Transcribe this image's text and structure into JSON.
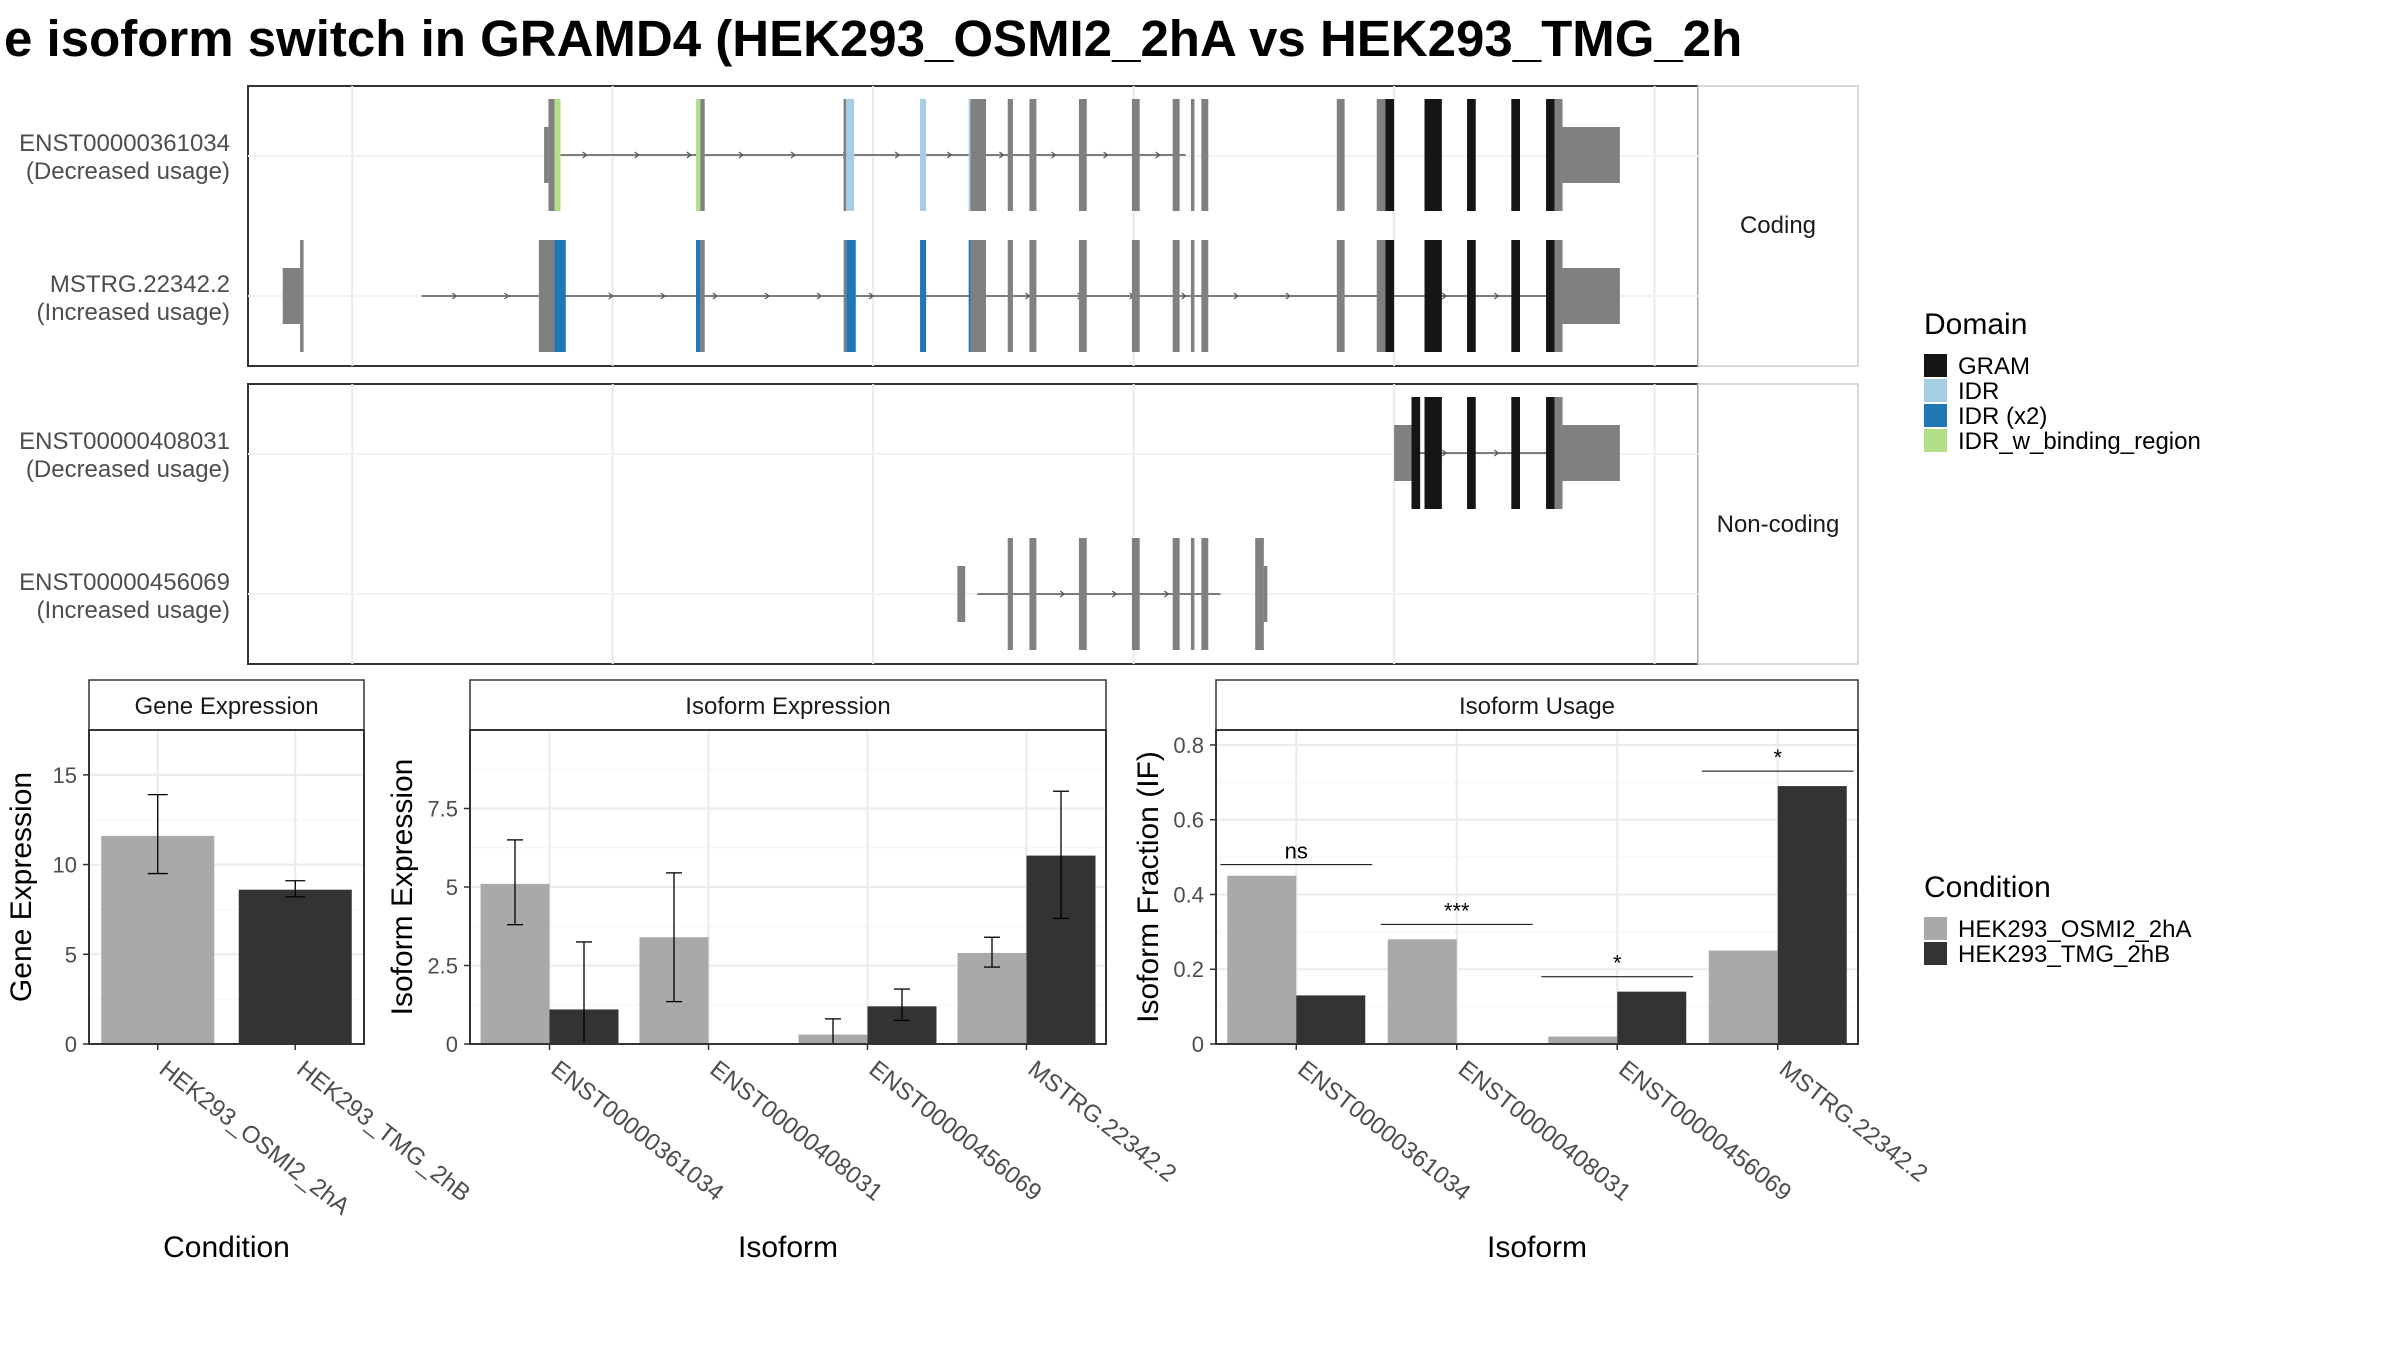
{
  "title": "e isoform switch in GRAMD4 (HEK293_OSMI2_2hA vs HEK293_TMG_2h",
  "colors": {
    "GRAM": "#151515",
    "IDR": "#a6cee3",
    "IDR (x2)": "#1f78b4",
    "IDR_w_binding_region": "#b2df8a",
    "none": "#808080",
    "cond1": "#a9a9a9",
    "cond2": "#333333"
  },
  "transcripts": {
    "coding_label": "Coding",
    "noncoding_label": "Non-coding",
    "xlim": [
      0,
      100
    ],
    "tracks": [
      {
        "panel": "coding",
        "id": "ENST00000361034",
        "usage": "(Decreased usage)",
        "line": [
          23,
          96
        ],
        "exons": [
          [
            22.1,
            22.6,
            "none",
            "utr"
          ],
          [
            22.6,
            23.3,
            "none",
            "cds"
          ],
          [
            23.3,
            24.0,
            "IDR_w_binding_region",
            "cds"
          ],
          [
            39.6,
            40.1,
            "IDR_w_binding_region",
            "cds"
          ],
          [
            40.1,
            40.6,
            "none",
            "cds"
          ],
          [
            56.6,
            56.9,
            "none",
            "cds"
          ],
          [
            56.9,
            57.8,
            "IDR",
            "cds"
          ],
          [
            65.4,
            66.1,
            "IDR",
            "cds"
          ],
          [
            71.0,
            71.2,
            "IDR",
            "cds"
          ],
          [
            71.2,
            73.0,
            "none",
            "cds"
          ],
          [
            75.5,
            76.1,
            "none",
            "cds"
          ],
          [
            78.0,
            78.8,
            "none",
            "cds"
          ],
          [
            83.7,
            84.6,
            "none",
            "cds"
          ],
          [
            89.8,
            90.7,
            "none",
            "cds"
          ],
          [
            94.5,
            95.3,
            "none",
            "cds"
          ],
          [
            96.6,
            97.0,
            "none",
            "cds"
          ],
          [
            97.8,
            98.6,
            "none",
            "cds"
          ],
          [
            113.4,
            114.3,
            "none",
            "cds"
          ],
          [
            118.0,
            119.0,
            "none",
            "cds"
          ],
          [
            119.0,
            120.0,
            "GRAM",
            "cds"
          ],
          [
            123.5,
            125.5,
            "GRAM",
            "cds"
          ],
          [
            128.4,
            129.4,
            "GRAM",
            "cds"
          ],
          [
            133.5,
            134.5,
            "GRAM",
            "cds"
          ],
          [
            137.5,
            138.5,
            "GRAM",
            "cds"
          ],
          [
            138.5,
            139.4,
            "none",
            "cds"
          ],
          [
            139.4,
            146.0,
            "none",
            "utr"
          ]
        ]
      },
      {
        "panel": "coding",
        "id": "MSTRG.22342.2",
        "usage": "(Increased usage)",
        "line": [
          8,
          139
        ],
        "exons": [
          [
            -8.0,
            -6.0,
            "none",
            "utr"
          ],
          [
            -6.0,
            -5.6,
            "none",
            "cds"
          ],
          [
            21.5,
            23.3,
            "none",
            "cds"
          ],
          [
            23.3,
            24.6,
            "IDR (x2)",
            "cds"
          ],
          [
            39.6,
            40.1,
            "IDR (x2)",
            "cds"
          ],
          [
            40.1,
            40.6,
            "none",
            "cds"
          ],
          [
            56.6,
            56.9,
            "none",
            "cds"
          ],
          [
            56.9,
            58.0,
            "IDR (x2)",
            "cds"
          ],
          [
            65.4,
            66.1,
            "IDR (x2)",
            "cds"
          ],
          [
            71.0,
            71.2,
            "IDR (x2)",
            "cds"
          ],
          [
            71.2,
            73.0,
            "none",
            "cds"
          ],
          [
            75.5,
            76.1,
            "none",
            "cds"
          ],
          [
            78.0,
            78.8,
            "none",
            "cds"
          ],
          [
            83.7,
            84.6,
            "none",
            "cds"
          ],
          [
            89.8,
            90.7,
            "none",
            "cds"
          ],
          [
            94.5,
            95.3,
            "none",
            "cds"
          ],
          [
            96.6,
            97.0,
            "none",
            "cds"
          ],
          [
            97.8,
            98.6,
            "none",
            "cds"
          ],
          [
            113.4,
            114.3,
            "none",
            "cds"
          ],
          [
            118.0,
            119.0,
            "none",
            "cds"
          ],
          [
            119.0,
            120.0,
            "GRAM",
            "cds"
          ],
          [
            123.5,
            125.5,
            "GRAM",
            "cds"
          ],
          [
            128.4,
            129.4,
            "GRAM",
            "cds"
          ],
          [
            133.5,
            134.5,
            "GRAM",
            "cds"
          ],
          [
            137.5,
            138.5,
            "GRAM",
            "cds"
          ],
          [
            138.5,
            139.4,
            "none",
            "cds"
          ],
          [
            139.4,
            146.0,
            "none",
            "utr"
          ]
        ]
      },
      {
        "panel": "noncoding",
        "id": "ENST00000408031",
        "usage": "(Decreased usage)",
        "line": [
          122,
          139
        ],
        "exons": [
          [
            120.0,
            122.0,
            "none",
            "utr"
          ],
          [
            122.0,
            123.0,
            "GRAM",
            "cds"
          ],
          [
            123.5,
            125.5,
            "GRAM",
            "cds"
          ],
          [
            128.4,
            129.4,
            "GRAM",
            "cds"
          ],
          [
            133.5,
            134.5,
            "GRAM",
            "cds"
          ],
          [
            137.5,
            138.5,
            "GRAM",
            "cds"
          ],
          [
            138.5,
            139.4,
            "none",
            "cds"
          ],
          [
            139.4,
            146.0,
            "none",
            "utr"
          ]
        ]
      },
      {
        "panel": "noncoding",
        "id": "ENST00000456069",
        "usage": "(Increased usage)",
        "line": [
          72,
          100
        ],
        "exons": [
          [
            69.7,
            70.6,
            "none",
            "utr"
          ],
          [
            75.5,
            76.1,
            "none",
            "cds"
          ],
          [
            78.0,
            78.8,
            "none",
            "cds"
          ],
          [
            83.7,
            84.6,
            "none",
            "cds"
          ],
          [
            89.8,
            90.7,
            "none",
            "cds"
          ],
          [
            94.5,
            95.3,
            "none",
            "cds"
          ],
          [
            96.6,
            97.0,
            "none",
            "cds"
          ],
          [
            97.8,
            98.6,
            "none",
            "cds"
          ],
          [
            104.0,
            105.0,
            "none",
            "cds"
          ],
          [
            105.0,
            105.4,
            "none",
            "utr"
          ]
        ]
      }
    ]
  },
  "legend_domain": {
    "title": "Domain",
    "items": [
      "GRAM",
      "IDR",
      "IDR (x2)",
      "IDR_w_binding_region"
    ]
  },
  "legend_condition": {
    "title": "Condition",
    "items": [
      "HEK293_OSMI2_2hA",
      "HEK293_TMG_2hB"
    ]
  },
  "chart_data": [
    {
      "type": "bar",
      "title": "Gene Expression",
      "xlabel": "Condition",
      "ylabel": "Gene Expression",
      "ylim": [
        0,
        17.5
      ],
      "yticks": [
        0,
        5,
        10,
        15
      ],
      "categories": [
        "HEK293_OSMI2_2hA",
        "HEK293_TMG_2hB"
      ],
      "values": [
        11.6,
        8.6
      ],
      "errors": [
        [
          9.5,
          13.9
        ],
        [
          8.2,
          9.1
        ]
      ]
    },
    {
      "type": "bar",
      "title": "Isoform Expression",
      "xlabel": "Isoform",
      "ylabel": "Isoform Expression",
      "ylim": [
        0,
        10
      ],
      "yticks": [
        0.0,
        2.5,
        5.0,
        7.5
      ],
      "categories": [
        "ENST00000361034",
        "ENST00000408031",
        "ENST00000456069",
        "MSTRG.22342.2"
      ],
      "series": [
        {
          "name": "HEK293_OSMI2_2hA",
          "values": [
            5.1,
            3.4,
            0.3,
            2.9
          ],
          "errors": [
            [
              3.8,
              6.5
            ],
            [
              1.35,
              5.45
            ],
            [
              0.0,
              0.8
            ],
            [
              2.45,
              3.4
            ]
          ]
        },
        {
          "name": "HEK293_TMG_2hB",
          "values": [
            1.1,
            0.0,
            1.2,
            6.0
          ],
          "errors": [
            [
              0.0,
              3.25
            ],
            [
              0.0,
              0.0
            ],
            [
              0.75,
              1.75
            ],
            [
              4.0,
              8.05
            ]
          ]
        }
      ]
    },
    {
      "type": "bar",
      "title": "Isoform Usage",
      "xlabel": "Isoform",
      "ylabel": "Isoform Fraction (IF)",
      "ylim": [
        0,
        0.84
      ],
      "yticks": [
        0.0,
        0.2,
        0.4,
        0.6,
        0.8
      ],
      "categories": [
        "ENST00000361034",
        "ENST00000408031",
        "ENST00000456069",
        "MSTRG.22342.2"
      ],
      "series": [
        {
          "name": "HEK293_OSMI2_2hA",
          "values": [
            0.45,
            0.28,
            0.02,
            0.25
          ]
        },
        {
          "name": "HEK293_TMG_2hB",
          "values": [
            0.13,
            0.0,
            0.14,
            0.69
          ]
        }
      ],
      "significance": [
        "ns",
        "***",
        "*",
        "*"
      ],
      "significance_levels": [
        0.48,
        0.32,
        0.18,
        0.73
      ]
    }
  ]
}
